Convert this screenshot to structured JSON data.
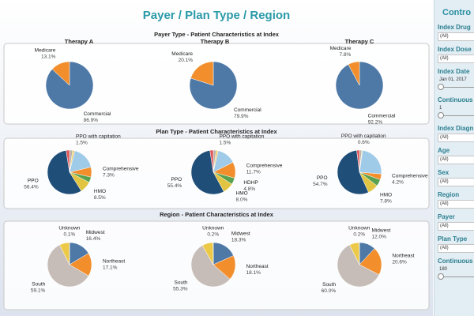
{
  "title": "Payer / Plan Type / Region",
  "sections": [
    {
      "title": "Payer Type - Patient Characteristics at Index",
      "columns": [
        "Therapy A",
        "Therapy B",
        "Therapy C"
      ]
    },
    {
      "title": "Plan Type - Patient Characteristics at Index"
    },
    {
      "title": "Region - Patient Characteristics at Index"
    }
  ],
  "chart_data": [
    {
      "type": "pie",
      "categories": [
        "Commercial",
        "Medicare"
      ],
      "values": [
        86.9,
        13.1
      ],
      "value_labels": [
        "86.9%",
        "13.1%"
      ],
      "colors": [
        "#4e79a7",
        "#f28e2b"
      ]
    },
    {
      "type": "pie",
      "categories": [
        "Commercial",
        "Medicare"
      ],
      "values": [
        79.9,
        20.1
      ],
      "value_labels": [
        "79.9%",
        "20.1%"
      ],
      "colors": [
        "#4e79a7",
        "#f28e2b"
      ]
    },
    {
      "type": "pie",
      "categories": [
        "Commercial",
        "Medicare"
      ],
      "values": [
        92.2,
        7.8
      ],
      "value_labels": [
        "92.2%",
        "7.8%"
      ],
      "colors": [
        "#4e79a7",
        "#f28e2b"
      ]
    },
    {
      "type": "pie",
      "categories": [
        null,
        "PPO with capitation",
        null,
        "Comprehensive",
        null,
        "HMO",
        "PPO",
        null
      ],
      "values": [
        2.3,
        1.5,
        17.5,
        7.3,
        4.0,
        8.5,
        56.4,
        2.5
      ],
      "value_labels": [
        null,
        "1.5%",
        null,
        "7.3%",
        null,
        "8.5%",
        "56.4%",
        null
      ],
      "colors": [
        "#bab0ac",
        "#f1ce63",
        "#a0cbe8",
        "#f28e2b",
        "#59a14f",
        "#e1c542",
        "#1f4e79",
        "#e15759"
      ]
    },
    {
      "type": "pie",
      "categories": [
        null,
        "PPO with capitation",
        null,
        "Comprehensive",
        "HDHP",
        "HMO",
        "PPO",
        null
      ],
      "values": [
        2.1,
        1.5,
        14.0,
        11.7,
        4.8,
        8.0,
        55.4,
        2.5
      ],
      "value_labels": [
        null,
        "1.5%",
        null,
        "11.7%",
        "4.8%",
        "8.0%",
        "55.4%",
        null
      ],
      "colors": [
        "#bab0ac",
        "#f1ce63",
        "#a0cbe8",
        "#f28e2b",
        "#59a14f",
        "#e1c542",
        "#1f4e79",
        "#e15759"
      ]
    },
    {
      "type": "pie",
      "categories": [
        null,
        "PPO with capitation",
        null,
        "Comprehensive",
        null,
        "HMO",
        "PPO",
        null
      ],
      "values": [
        1.7,
        0.6,
        24.0,
        4.2,
        5.0,
        7.8,
        54.7,
        2.0
      ],
      "value_labels": [
        null,
        "0.6%",
        null,
        "4.2%",
        null,
        "7.8%",
        "54.7%",
        null
      ],
      "colors": [
        "#bab0ac",
        "#f1ce63",
        "#a0cbe8",
        "#f28e2b",
        "#59a14f",
        "#e1c542",
        "#1f4e79",
        "#e15759"
      ]
    },
    {
      "type": "pie",
      "categories": [
        "Midwest",
        "Northeast",
        "South",
        null,
        "Unknown"
      ],
      "values": [
        16.4,
        17.1,
        59.1,
        7.3,
        0.1
      ],
      "value_labels": [
        "16.4%",
        "17.1%",
        "59.1%",
        null,
        "0.1%"
      ],
      "colors": [
        "#4e79a7",
        "#f28e2b",
        "#c7bdb8",
        "#edc948",
        "#76b7b2"
      ]
    },
    {
      "type": "pie",
      "categories": [
        "Midwest",
        "Northeast",
        "South",
        null,
        "Unknown"
      ],
      "values": [
        18.3,
        18.1,
        55.3,
        8.1,
        0.2
      ],
      "value_labels": [
        "18.3%",
        "18.1%",
        "55.3%",
        null,
        "0.2%"
      ],
      "colors": [
        "#4e79a7",
        "#f28e2b",
        "#c7bdb8",
        "#edc948",
        "#76b7b2"
      ]
    },
    {
      "type": "pie",
      "categories": [
        "Midwest",
        "Northeast",
        "South",
        null,
        "Unknown"
      ],
      "values": [
        12.0,
        20.6,
        60.0,
        7.2,
        0.2
      ],
      "value_labels": [
        "12.0%",
        "20.6%",
        "60.0%",
        null,
        "0.2%"
      ],
      "colors": [
        "#4e79a7",
        "#f28e2b",
        "#c7bdb8",
        "#edc948",
        "#76b7b2"
      ]
    }
  ],
  "controls": {
    "title": "Contro",
    "items": [
      {
        "label": "Index Drug",
        "value": "(All)"
      },
      {
        "label": "Index Dose",
        "value": "(All)"
      },
      {
        "label": "Index Date",
        "value": "Jan 01, 2017",
        "slider": true
      },
      {
        "label": "Continuous",
        "value": "1",
        "slider": true
      },
      {
        "label": "Index Diagn",
        "value": "(All)"
      },
      {
        "label": "Age",
        "value": "(All)"
      },
      {
        "label": "Sex",
        "value": "(All)"
      },
      {
        "label": "Region",
        "value": "(All)"
      },
      {
        "label": "Payer",
        "value": "(All)"
      },
      {
        "label": "Plan Type",
        "value": "(All)"
      },
      {
        "label": "Continuous E",
        "value": "180",
        "slider": true
      }
    ]
  }
}
